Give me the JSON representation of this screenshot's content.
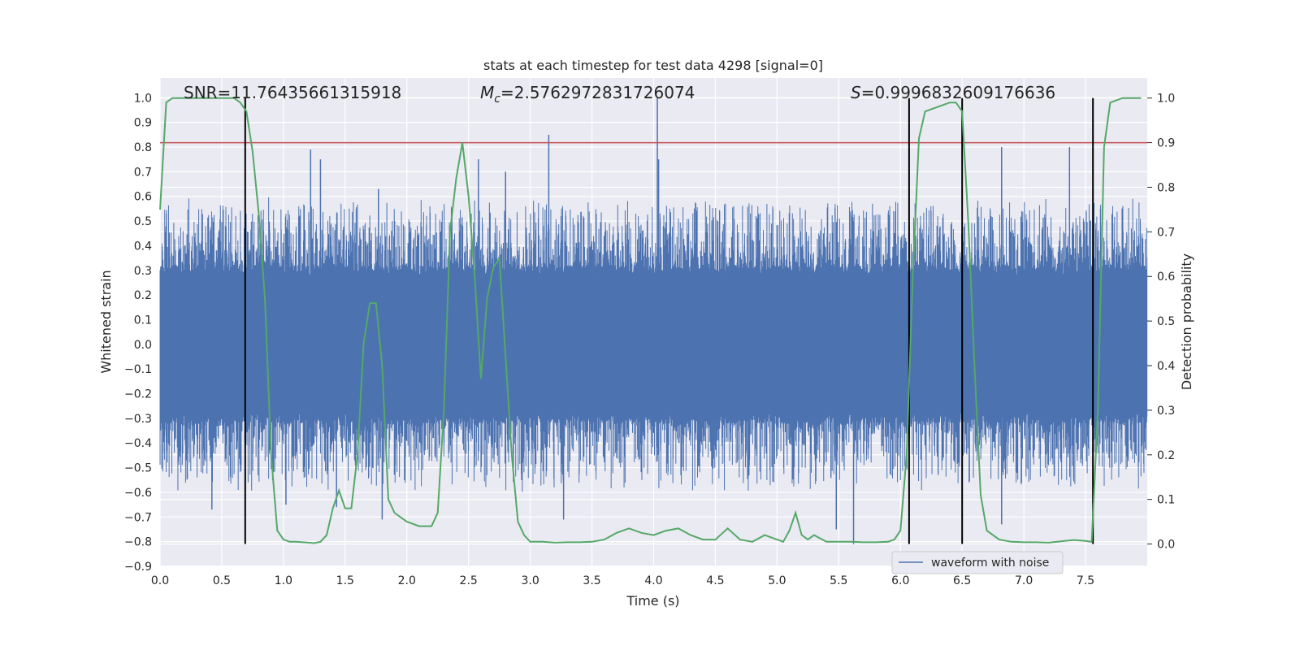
{
  "chart_data": {
    "type": "line",
    "title": "stats at each timestep for test data 4298 [signal=0]",
    "xlabel": "Time (s)",
    "ylabel": "Whitened strain",
    "y2label": "Detection probability",
    "xlim": [
      0.0,
      8.0
    ],
    "ylim": [
      -0.9,
      1.08
    ],
    "y2lim": [
      -0.05,
      1.045
    ],
    "xticks": [
      "0.0",
      "0.5",
      "1.0",
      "1.5",
      "2.0",
      "2.5",
      "3.0",
      "3.5",
      "4.0",
      "4.5",
      "5.0",
      "5.5",
      "6.0",
      "6.5",
      "7.0",
      "7.5"
    ],
    "yticks": [
      "1.0",
      "0.9",
      "0.8",
      "0.7",
      "0.6",
      "0.5",
      "0.4",
      "0.3",
      "0.2",
      "0.1",
      "0.0",
      "−0.1",
      "−0.2",
      "−0.3",
      "−0.4",
      "−0.5",
      "−0.6",
      "−0.7",
      "−0.8",
      "−0.9"
    ],
    "y2ticks": [
      "1.0",
      "0.9",
      "0.8",
      "0.7",
      "0.6",
      "0.5",
      "0.4",
      "0.3",
      "0.2",
      "0.1",
      "0.0"
    ],
    "grid": true,
    "legend": {
      "position": "bottom-right",
      "entries": [
        "waveform with noise"
      ]
    },
    "annotations": {
      "snr": "SNR=11.76435661315918",
      "mc_symbol": "M",
      "mc_sub": "c",
      "mc_value": "=2.5762972831726074",
      "s_symbol": "S",
      "s_value": "=0.9996832609176636"
    },
    "threshold_y2": 0.9,
    "vertical_lines_x": [
      0.69,
      6.07,
      6.5,
      7.56
    ],
    "series": [
      {
        "name": "waveform with noise",
        "axis": "left",
        "noise_envelope": {
          "base_amplitude": 0.32,
          "typical_peak": 0.5,
          "max_peak": 1.0,
          "min_trough": -0.81
        },
        "spikes": [
          [
            4.03,
            1.0
          ],
          [
            4.04,
            0.75
          ],
          [
            3.15,
            0.85
          ],
          [
            6.82,
            0.8
          ],
          [
            7.37,
            0.8
          ],
          [
            1.22,
            0.79
          ],
          [
            1.3,
            0.75
          ],
          [
            2.58,
            0.75
          ],
          [
            2.8,
            0.7
          ],
          [
            1.77,
            0.63
          ],
          [
            5.62,
            -0.81
          ],
          [
            5.48,
            -0.75
          ],
          [
            6.82,
            -0.73
          ],
          [
            3.27,
            -0.71
          ],
          [
            1.43,
            -0.66
          ],
          [
            1.8,
            -0.71
          ],
          [
            1.02,
            -0.65
          ],
          [
            0.42,
            -0.67
          ]
        ]
      },
      {
        "name": "",
        "axis": "right",
        "color": "#55a868",
        "x": [
          0.0,
          0.05,
          0.1,
          0.2,
          0.3,
          0.4,
          0.5,
          0.6,
          0.65,
          0.7,
          0.75,
          0.8,
          0.85,
          0.9,
          0.95,
          1.0,
          1.05,
          1.1,
          1.2,
          1.25,
          1.3,
          1.35,
          1.4,
          1.45,
          1.5,
          1.55,
          1.6,
          1.65,
          1.7,
          1.75,
          1.8,
          1.85,
          1.9,
          1.95,
          2.0,
          2.1,
          2.2,
          2.25,
          2.3,
          2.35,
          2.4,
          2.45,
          2.5,
          2.55,
          2.6,
          2.65,
          2.7,
          2.75,
          2.8,
          2.85,
          2.9,
          2.95,
          3.0,
          3.1,
          3.2,
          3.3,
          3.4,
          3.5,
          3.6,
          3.7,
          3.8,
          3.9,
          4.0,
          4.1,
          4.2,
          4.3,
          4.4,
          4.5,
          4.6,
          4.7,
          4.8,
          4.9,
          5.0,
          5.05,
          5.1,
          5.15,
          5.2,
          5.25,
          5.3,
          5.4,
          5.5,
          5.6,
          5.7,
          5.8,
          5.9,
          5.95,
          6.0,
          6.05,
          6.1,
          6.15,
          6.2,
          6.3,
          6.4,
          6.45,
          6.5,
          6.55,
          6.6,
          6.65,
          6.7,
          6.8,
          6.9,
          7.0,
          7.1,
          7.2,
          7.3,
          7.4,
          7.5,
          7.55,
          7.6,
          7.65,
          7.7,
          7.8,
          7.95
        ],
        "values": [
          0.75,
          0.99,
          1.0,
          1.0,
          1.0,
          1.0,
          1.0,
          1.0,
          0.99,
          0.97,
          0.88,
          0.74,
          0.55,
          0.2,
          0.03,
          0.01,
          0.005,
          0.005,
          0.003,
          0.002,
          0.005,
          0.02,
          0.08,
          0.12,
          0.08,
          0.08,
          0.2,
          0.45,
          0.54,
          0.54,
          0.4,
          0.1,
          0.07,
          0.06,
          0.05,
          0.04,
          0.04,
          0.07,
          0.3,
          0.7,
          0.82,
          0.9,
          0.78,
          0.6,
          0.37,
          0.55,
          0.62,
          0.64,
          0.42,
          0.2,
          0.05,
          0.02,
          0.005,
          0.005,
          0.003,
          0.004,
          0.004,
          0.005,
          0.01,
          0.025,
          0.035,
          0.025,
          0.02,
          0.03,
          0.035,
          0.02,
          0.01,
          0.01,
          0.035,
          0.01,
          0.005,
          0.02,
          0.01,
          0.005,
          0.03,
          0.07,
          0.02,
          0.01,
          0.02,
          0.005,
          0.005,
          0.005,
          0.004,
          0.004,
          0.005,
          0.01,
          0.03,
          0.2,
          0.6,
          0.91,
          0.97,
          0.98,
          0.99,
          0.99,
          0.97,
          0.72,
          0.4,
          0.11,
          0.03,
          0.01,
          0.005,
          0.004,
          0.004,
          0.003,
          0.006,
          0.009,
          0.007,
          0.005,
          0.3,
          0.89,
          0.99,
          1.0,
          1.0
        ]
      }
    ]
  }
}
